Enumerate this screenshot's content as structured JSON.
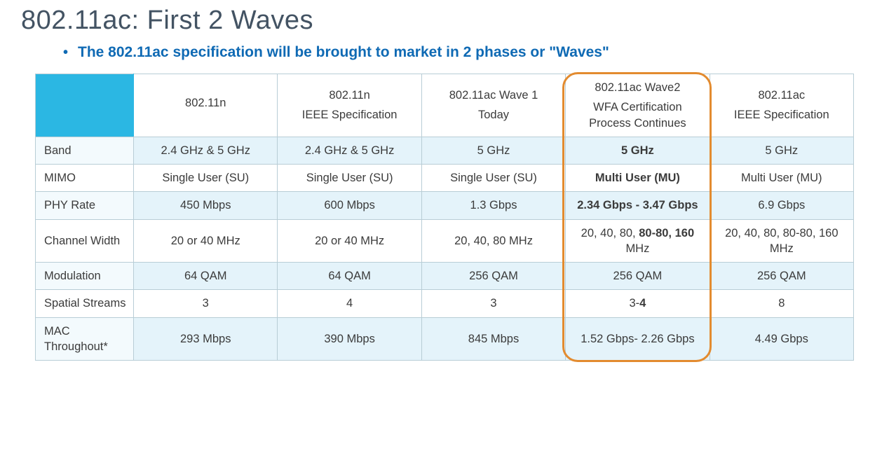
{
  "title": "802.11ac: First 2 Waves",
  "bullet": "The 802.11ac specification will be brought to market in 2 phases or \"Waves\"",
  "table": {
    "highlight_column_index": 3,
    "colors": {
      "corner_bg": "#2bb7e3",
      "border": "#b8cdd6",
      "shade_light": "#e4f3fa",
      "shade_light_label": "#f3fafd",
      "highlight_border": "#e38b2f",
      "title_color": "#435363",
      "bullet_color": "#0f6ab4"
    },
    "columns": [
      {
        "line1": "802.11n",
        "line2": ""
      },
      {
        "line1": "802.11n",
        "line2": "IEEE Specification"
      },
      {
        "line1": "802.11ac Wave 1",
        "line2": "Today"
      },
      {
        "line1": "802.11ac Wave2",
        "line2": "WFA Certification Process Continues"
      },
      {
        "line1": "802.11ac",
        "line2": "IEEE Specification"
      }
    ],
    "rows": [
      {
        "label": "Band",
        "cells": [
          "2.4 GHz & 5 GHz",
          "2.4 GHz & 5 GHz",
          "5 GHz",
          "5 GHz",
          "5 GHz"
        ],
        "bold_col": 3
      },
      {
        "label": "MIMO",
        "cells": [
          "Single User (SU)",
          "Single User (SU)",
          "Single User (SU)",
          "Multi User (MU)",
          "Multi User (MU)"
        ],
        "bold_col": 3
      },
      {
        "label": "PHY Rate",
        "cells": [
          "450 Mbps",
          "600 Mbps",
          "1.3 Gbps",
          "2.34 Gbps - 3.47 Gbps",
          "6.9 Gbps"
        ],
        "bold_col": 3
      },
      {
        "label": "Channel Width",
        "cells": [
          "20 or 40 MHz",
          "20 or 40 MHz",
          "20, 40, 80 MHz",
          "20, 40, 80, 80-80, 160 MHz",
          "20, 40, 80, 80-80, 160 MHz"
        ],
        "bold_html": {
          "3": "20, 40, 80, <b>80-80, 160</b> MHz"
        }
      },
      {
        "label": "Modulation",
        "cells": [
          "64 QAM",
          "64 QAM",
          "256 QAM",
          "256 QAM",
          "256 QAM"
        ]
      },
      {
        "label": "Spatial Streams",
        "cells": [
          "3",
          "4",
          "3",
          "3-4",
          "8"
        ],
        "bold_html": {
          "3": "3-<b>4</b>"
        }
      },
      {
        "label": "MAC Throughout*",
        "cells": [
          "293 Mbps",
          "390 Mbps",
          "845 Mbps",
          "1.52 Gbps- 2.26 Gbps",
          "4.49 Gbps"
        ]
      }
    ]
  }
}
